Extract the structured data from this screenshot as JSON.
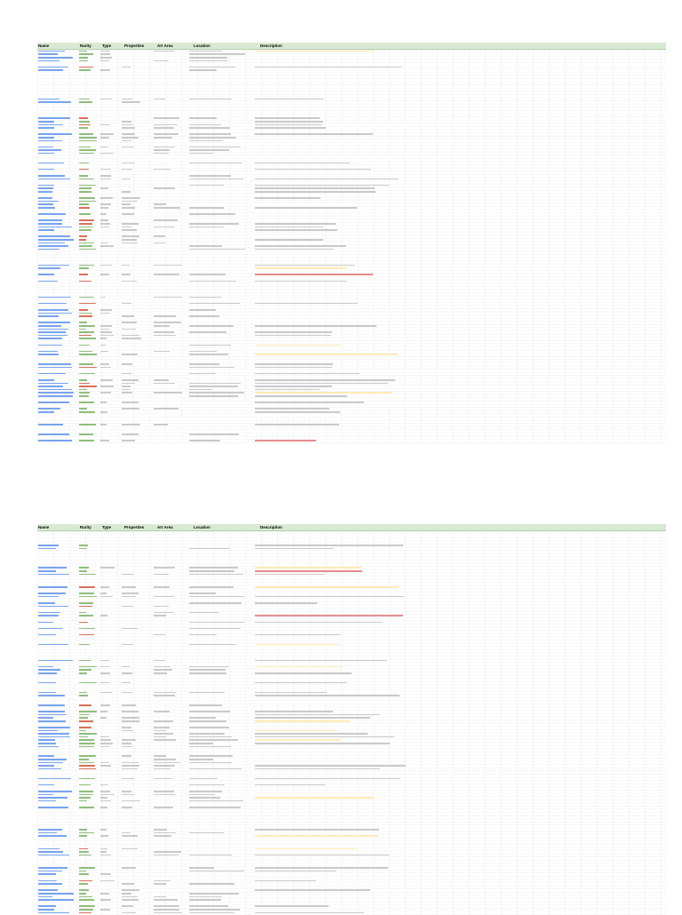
{
  "sheet": {
    "headers": [
      "Name",
      "Rarity",
      "Type",
      "Properties",
      "Art Area",
      "Location",
      "Description"
    ]
  },
  "colors": {
    "header_bg": "#d9ead3",
    "link": "#4a86e8",
    "rarity_common": "#6aa84f",
    "rarity_rare": "#cc4125",
    "highlight": "#ffe599",
    "text": "#666666",
    "accent": "#e06666"
  }
}
